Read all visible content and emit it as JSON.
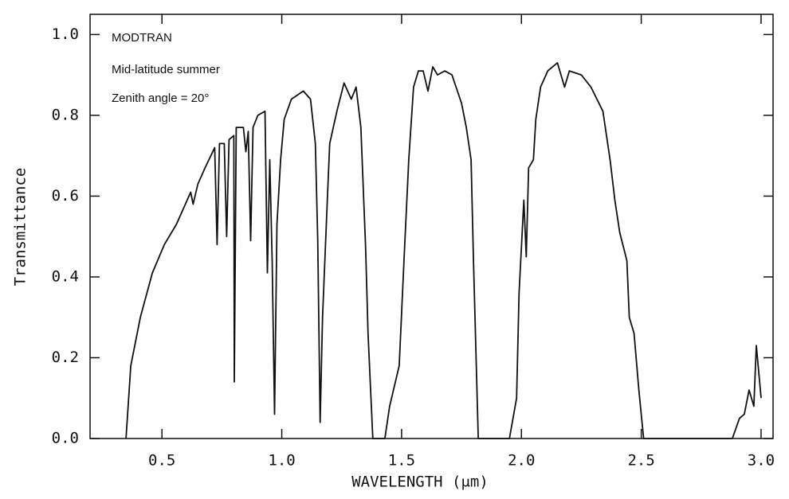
{
  "chart_data": {
    "type": "line",
    "annotations": [
      "MODTRAN",
      "Mid-latitude summer",
      "Zenith angle = 20°"
    ],
    "x_label": "WAVELENGTH (μm)",
    "y_label": "Transmittance",
    "color": "#111111",
    "x": [
      0.35,
      0.37,
      0.41,
      0.46,
      0.51,
      0.56,
      0.62,
      0.63,
      0.65,
      0.68,
      0.72,
      0.73,
      0.74,
      0.76,
      0.77,
      0.78,
      0.8,
      0.802,
      0.81,
      0.84,
      0.85,
      0.86,
      0.87,
      0.88,
      0.9,
      0.93,
      0.94,
      0.95,
      0.96,
      0.97,
      0.98,
      0.995,
      1.01,
      1.04,
      1.09,
      1.12,
      1.14,
      1.15,
      1.16,
      1.17,
      1.19,
      1.2,
      1.23,
      1.26,
      1.29,
      1.31,
      1.33,
      1.35,
      1.36,
      1.38,
      1.43,
      1.45,
      1.49,
      1.51,
      1.53,
      1.55,
      1.57,
      1.59,
      1.61,
      1.63,
      1.65,
      1.68,
      1.71,
      1.75,
      1.77,
      1.79,
      1.8,
      1.82,
      1.95,
      1.98,
      1.99,
      2.01,
      2.02,
      2.03,
      2.05,
      2.06,
      2.08,
      2.11,
      2.15,
      2.18,
      2.2,
      2.25,
      2.29,
      2.34,
      2.37,
      2.39,
      2.41,
      2.44,
      2.45,
      2.47,
      2.49,
      2.51,
      2.88,
      2.91,
      2.93,
      2.95,
      2.97,
      2.98,
      3.0
    ],
    "values": [
      0,
      0.18,
      0.3,
      0.41,
      0.48,
      0.53,
      0.61,
      0.58,
      0.63,
      0.67,
      0.72,
      0.48,
      0.73,
      0.73,
      0.5,
      0.74,
      0.75,
      0.14,
      0.77,
      0.77,
      0.71,
      0.76,
      0.49,
      0.77,
      0.8,
      0.81,
      0.41,
      0.69,
      0.44,
      0.06,
      0.53,
      0.69,
      0.79,
      0.84,
      0.86,
      0.84,
      0.73,
      0.49,
      0.04,
      0.3,
      0.59,
      0.73,
      0.81,
      0.88,
      0.84,
      0.87,
      0.77,
      0.47,
      0.26,
      0,
      0,
      0.08,
      0.18,
      0.44,
      0.69,
      0.87,
      0.91,
      0.91,
      0.86,
      0.92,
      0.9,
      0.91,
      0.9,
      0.83,
      0.77,
      0.69,
      0.44,
      0,
      0,
      0.1,
      0.36,
      0.59,
      0.45,
      0.67,
      0.69,
      0.79,
      0.87,
      0.91,
      0.93,
      0.87,
      0.91,
      0.9,
      0.87,
      0.81,
      0.69,
      0.59,
      0.51,
      0.44,
      0.3,
      0.26,
      0.12,
      0,
      0,
      0.05,
      0.06,
      0.12,
      0.08,
      0.23,
      0.1
    ],
    "xlim": [
      0.2,
      3.05
    ],
    "xticks": [
      0.5,
      {
        "value": 1,
        "label": "1.0"
      },
      1.5,
      {
        "value": 2,
        "label": "2.0"
      },
      2.5,
      {
        "value": 3,
        "label": "3.0"
      }
    ],
    "ylim": [
      0,
      1.05
    ],
    "yticks": [
      {
        "value": 0,
        "label": "0.0"
      },
      0.2,
      0.4,
      0.6,
      0.8,
      {
        "value": 1,
        "label": "1.0"
      }
    ]
  }
}
